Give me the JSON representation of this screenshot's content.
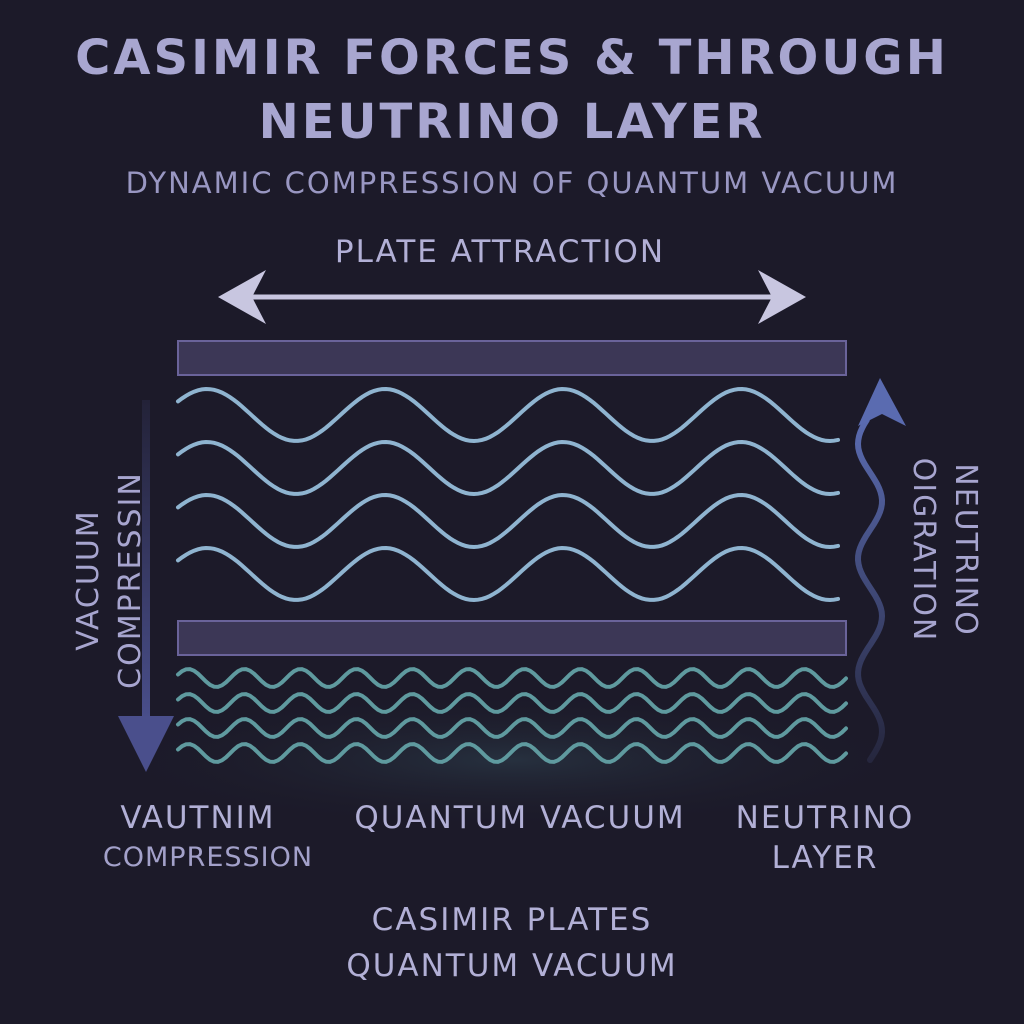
{
  "title_line1": "CASIMIR FORCES & THROUGH",
  "title_line2": "NEUTRINO LAYER",
  "subtitle": "DYNAMIC COMPRESSION OF QUANTUM VACUUM",
  "plate_attraction": "PLATE ATTRACTION",
  "vacuum_compression_side": {
    "line1": "VACUUM",
    "line2": "COMPRESSIN"
  },
  "neutrino_migration_side": {
    "line1": "NEUTRINO",
    "line2": "OIGRATION"
  },
  "bottom_labels": {
    "vacuum_compression": {
      "line1": "VAUTNIM",
      "line2": "COMPRESSION"
    },
    "quantum_vacuum": "QUANTUM VACUUM",
    "neutrino_layer": {
      "line1": "NEUTRINO",
      "line2": "LAYER"
    }
  },
  "footer": {
    "line1": "CASIMIR PLATES",
    "line2": "QUANTUM VACUUM"
  },
  "colors": {
    "background": "#1c1a29",
    "plate_fill": "#3c3756",
    "plate_stroke": "#6a639a",
    "wave_upper": "#8fb4d0",
    "wave_lower": "#5f9a9f",
    "arrow_plate": "#c8c6e0",
    "arrow_vacuum": "#4a4f8c",
    "arrow_neutrino": "#5a6bb0"
  }
}
